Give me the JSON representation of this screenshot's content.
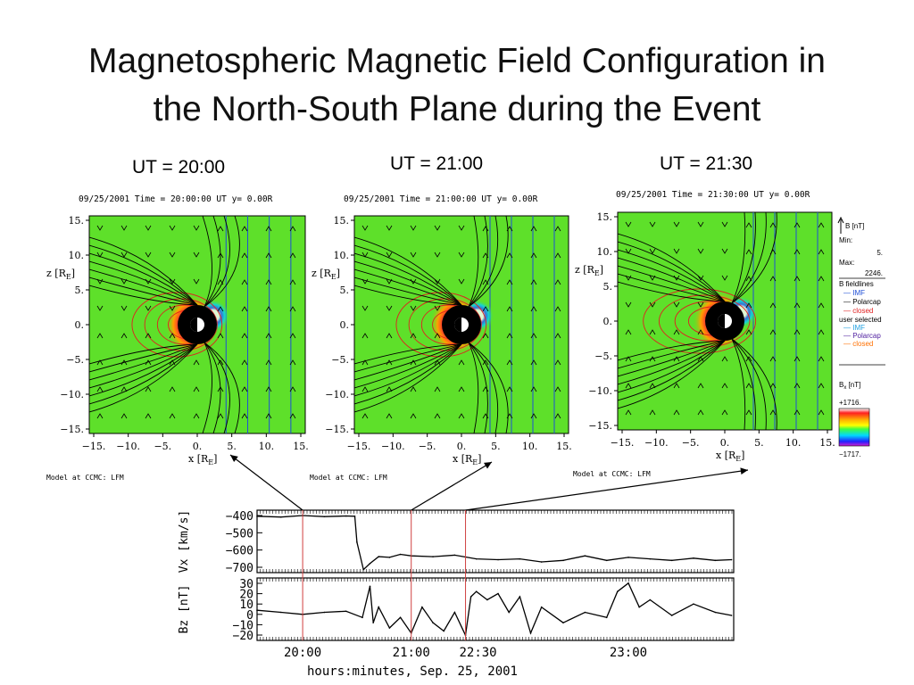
{
  "slide": {
    "title_line1": "Magnetospheric Magnetic Field Configuration in",
    "title_line2": "the North-South Plane during the Event"
  },
  "panels": [
    {
      "ut_label": "UT = 20:00",
      "header": "09/25/2001 Time = 20:00:00 UT y= 0.00R",
      "model": "Model at CCMC: LFM"
    },
    {
      "ut_label": "UT = 21:00",
      "header": "09/25/2001 Time = 21:00:00 UT y= 0.00R",
      "model": "Model at CCMC: LFM"
    },
    {
      "ut_label": "UT = 21:30",
      "header": "09/25/2001 Time = 21:30:00 UT y= 0.00R",
      "model": "Model at CCMC: LFM"
    }
  ],
  "axes": {
    "z_label": "z [R",
    "x_label": "x [R",
    "subscript": "E",
    "z_ticks": [
      "15.",
      "10.",
      "5.",
      "0.",
      "−5.",
      "−10.",
      "−15."
    ],
    "x_ticks": [
      "−15.",
      "−10.",
      "−5.",
      "0.",
      "5.",
      "10.",
      "15."
    ]
  },
  "legend": {
    "b_label": "B [nT]",
    "min_label": "Min:",
    "min_value": "5.",
    "max_label": "Max:",
    "max_value": "2246.",
    "fieldlines_title": "B fieldlines",
    "imf": "IMF",
    "polarcap": "Polarcap",
    "closed": "closed",
    "user_selected": "user selected",
    "imf2": "IMF",
    "polarcap2": "Polarcap",
    "closed2": "closed",
    "bx_label": "B",
    "bx_sub": "x",
    "bx_unit": " [nT]",
    "bx_max": "+1716.",
    "bx_min": "−1717."
  },
  "colors": {
    "field_background": "#5ee02a",
    "imf_line": "#1f4fd6",
    "closed_line": "#e02020",
    "black_line": "#000000",
    "marker_line": "#d04040"
  },
  "chart_data": [
    {
      "type": "line",
      "ylabel": "Vx [km/s]",
      "yticks": [
        "−400",
        "−500",
        "−600",
        "−700"
      ],
      "ylim": [
        -760,
        -350
      ],
      "x_hours": [
        19.58,
        19.8,
        20.0,
        20.2,
        20.4,
        20.48,
        20.5,
        20.56,
        20.62,
        20.7,
        20.8,
        20.9,
        21.0,
        21.2,
        21.4,
        21.6,
        21.8,
        22.0,
        22.2,
        22.4,
        22.6,
        22.8,
        23.0,
        23.2,
        23.4,
        23.6,
        23.8,
        23.95
      ],
      "values": [
        -390,
        -395,
        -385,
        -392,
        -388,
        -390,
        -560,
        -740,
        -700,
        -655,
        -660,
        -640,
        -650,
        -655,
        -645,
        -670,
        -675,
        -670,
        -690,
        -680,
        -650,
        -680,
        -660,
        -670,
        -680,
        -665,
        -680,
        -675
      ]
    },
    {
      "type": "line",
      "ylabel": "Bz [nT]",
      "yticks": [
        "30",
        "20",
        "10",
        "0",
        "−10",
        "−20"
      ],
      "ylim": [
        -27,
        33
      ],
      "x_hours": [
        19.58,
        19.8,
        20.0,
        20.2,
        20.4,
        20.55,
        20.62,
        20.65,
        20.7,
        20.8,
        20.9,
        21.0,
        21.1,
        21.2,
        21.3,
        21.4,
        21.5,
        21.55,
        21.6,
        21.7,
        21.8,
        21.9,
        22.0,
        22.1,
        22.2,
        22.4,
        22.6,
        22.8,
        22.9,
        23.0,
        23.1,
        23.2,
        23.4,
        23.6,
        23.8,
        23.95
      ],
      "values": [
        2,
        0,
        -2,
        0,
        1,
        -5,
        25,
        -10,
        5,
        -15,
        -5,
        -20,
        5,
        -10,
        -18,
        0,
        -22,
        15,
        20,
        12,
        18,
        0,
        15,
        -20,
        5,
        -10,
        0,
        -5,
        20,
        28,
        5,
        12,
        -3,
        8,
        0,
        -3
      ]
    }
  ],
  "timeseries": {
    "xticks": [
      "20:00",
      "21:00",
      "22:30",
      "23:00"
    ],
    "xlabel": "hours:minutes, Sep. 25, 2001",
    "marker_hours": [
      20.0,
      21.0,
      21.5
    ]
  }
}
